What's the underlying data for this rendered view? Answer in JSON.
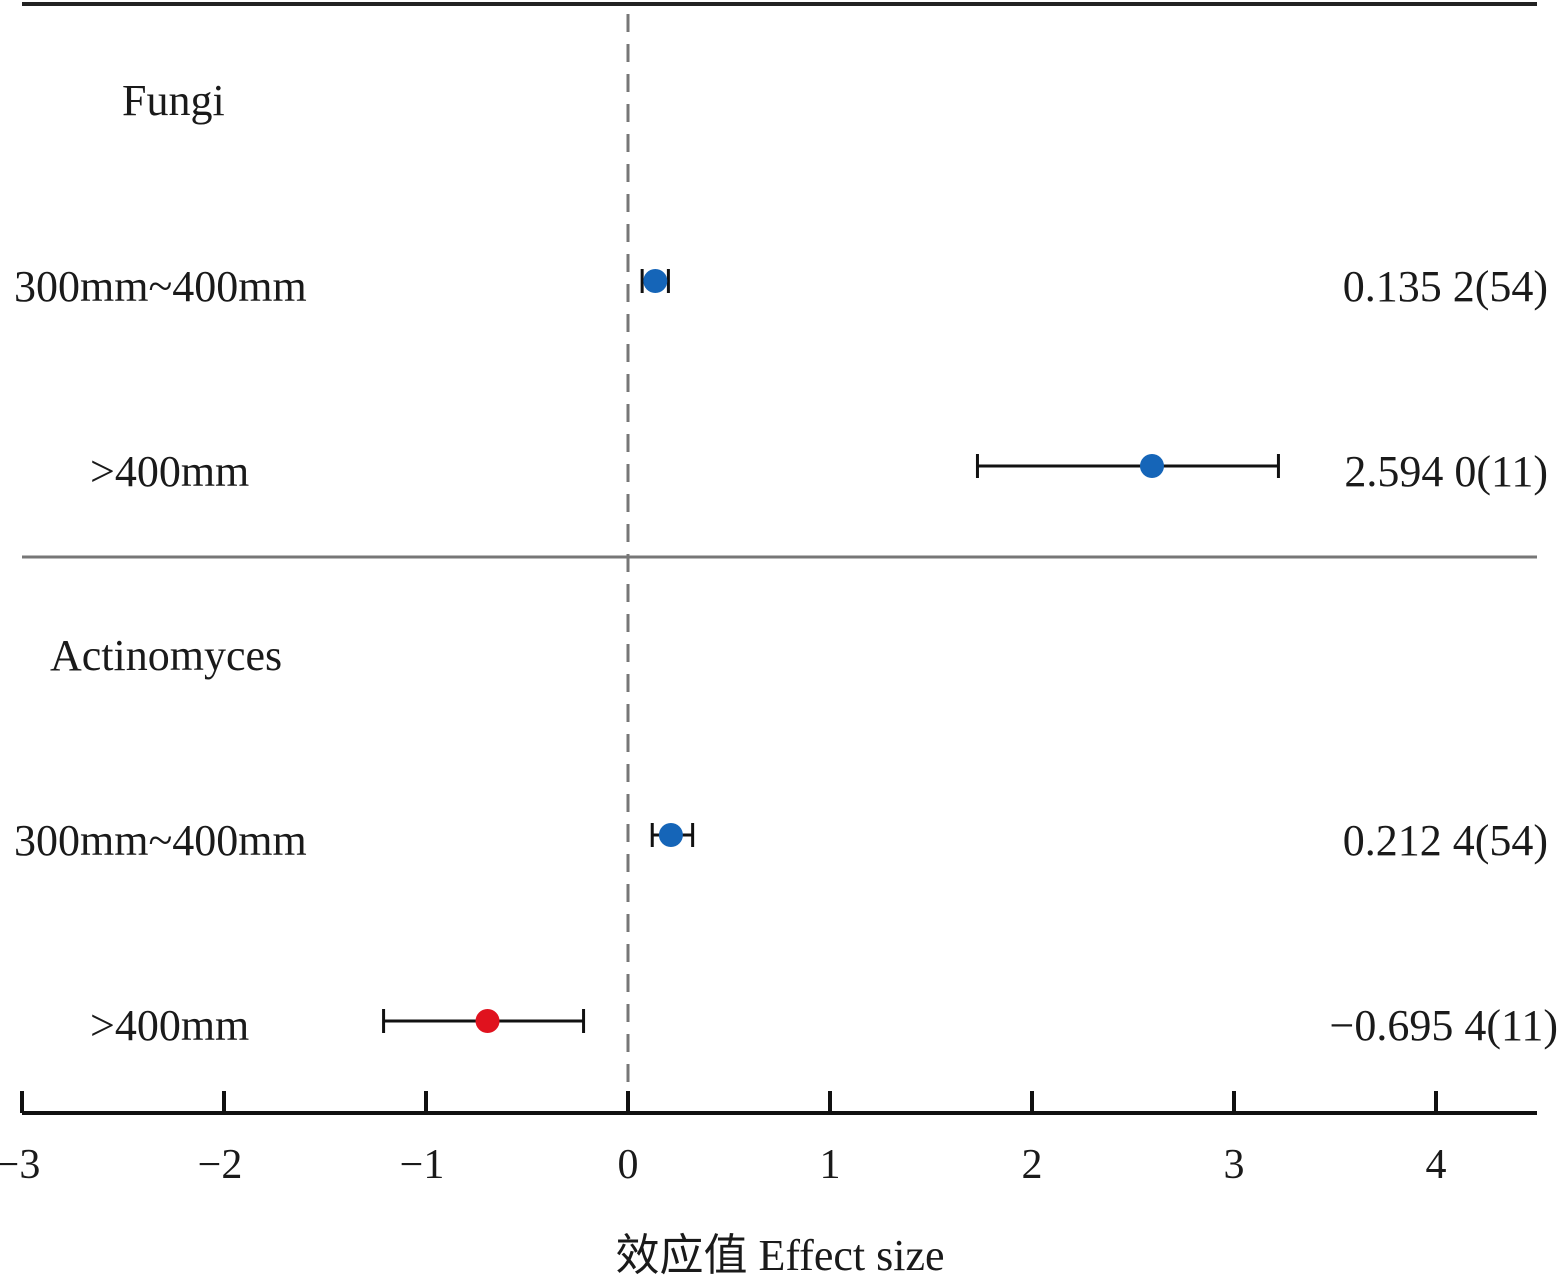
{
  "chart_data": {
    "type": "forest",
    "xlabel": "效应值 Effect size",
    "xlim": [
      -3,
      4.5
    ],
    "xticks": [
      -3,
      -2,
      -1,
      0,
      1,
      2,
      3,
      4
    ],
    "xtick_labels": [
      "−3",
      "−2",
      "−1",
      "0",
      "1",
      "2",
      "3",
      "4"
    ],
    "reference_line": 0,
    "groups": [
      {
        "name": "Fungi",
        "rows": [
          {
            "label": "300mm~400mm",
            "estimate": 0.1352,
            "ci": [
              0.07,
              0.2
            ],
            "value_text": "0.135 2(54)",
            "color": "#1565b8"
          },
          {
            "label": ">400mm",
            "estimate": 2.594,
            "ci": [
              1.73,
              3.22
            ],
            "value_text": "2.594 0(11)",
            "color": "#1565b8"
          }
        ]
      },
      {
        "name": "Actinomyces",
        "rows": [
          {
            "label": "300mm~400mm",
            "estimate": 0.2124,
            "ci": [
              0.12,
              0.32
            ],
            "value_text": "0.212 4(54)",
            "color": "#1565b8"
          },
          {
            "label": ">400mm",
            "estimate": -0.6954,
            "ci": [
              -1.21,
              -0.22
            ],
            "value_text": "−0.695 4(11)",
            "color": "#e0121e"
          }
        ]
      }
    ]
  }
}
